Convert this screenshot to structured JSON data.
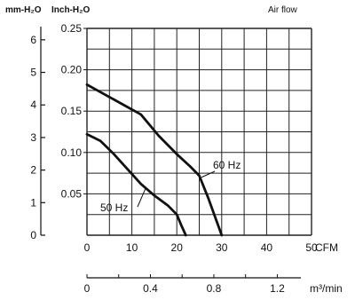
{
  "header": {
    "left_unit": "mm-H₂O",
    "right_unit": "Inch-H₂O",
    "title": "Air flow"
  },
  "chart_data": {
    "type": "line",
    "title": "Air flow",
    "x_primary": {
      "unit": "CFM",
      "ticks": [
        0,
        10,
        20,
        30,
        40,
        50
      ],
      "range": [
        0,
        50
      ]
    },
    "x_secondary": {
      "unit": "m³/min",
      "ticks": [
        "0",
        "0.4",
        "0.8",
        "1.2"
      ],
      "tick_values": [
        0,
        0.4,
        0.8,
        1.2
      ]
    },
    "y_primary": {
      "unit": "mm-H₂O",
      "ticks": [
        0,
        1,
        2,
        3,
        4,
        5,
        6
      ],
      "range": [
        0,
        6.35
      ]
    },
    "y_secondary": {
      "unit": "Inch-H₂O",
      "ticks": [
        "0.05",
        "0.10",
        "0.15",
        "0.20",
        "0.25"
      ],
      "tick_values": [
        0.05,
        0.1,
        0.15,
        0.2,
        0.25
      ],
      "range": [
        0,
        0.25
      ]
    },
    "grid": true,
    "series": [
      {
        "name": "60 Hz",
        "x": [
          0,
          4,
          8,
          12,
          16,
          20,
          23,
          25,
          27,
          29,
          30
        ],
        "y": [
          0.182,
          0.17,
          0.158,
          0.146,
          0.12,
          0.098,
          0.083,
          0.072,
          0.045,
          0.015,
          0.0
        ]
      },
      {
        "name": "50 Hz",
        "x": [
          0,
          3,
          6,
          9,
          12,
          15,
          18,
          20,
          21,
          22
        ],
        "y": [
          0.122,
          0.114,
          0.098,
          0.08,
          0.062,
          0.048,
          0.036,
          0.025,
          0.012,
          0.0
        ]
      }
    ]
  }
}
